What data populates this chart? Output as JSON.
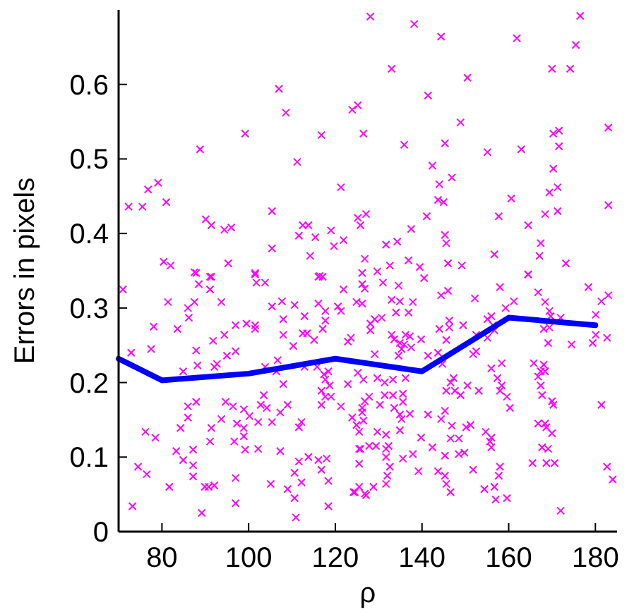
{
  "chart_data": {
    "type": "scatter",
    "xlabel": "ρ",
    "ylabel": "Errors in pixels",
    "xlim": [
      70,
      185
    ],
    "ylim": [
      0,
      0.7
    ],
    "xticks": [
      80,
      100,
      120,
      140,
      160,
      180
    ],
    "yticks": [
      0,
      0.1,
      0.2,
      0.3,
      0.4,
      0.5,
      0.6
    ],
    "series": [
      {
        "color": "#ff00ff",
        "marker": "cross",
        "x": [
          72.3,
          75.5,
          76.8,
          79.1,
          81.0,
          88.8,
          90.1,
          91.4,
          94.4,
          96.0,
          99.2,
          105.4,
          105.4,
          107.0,
          108.6,
          111.2,
          111.6,
          112.5,
          113.8,
          115.4,
          116.8,
          119.0,
          119.7,
          121.3,
          121.9,
          123.9,
          125.2,
          126.5,
          125.2,
          80.4,
          82.0,
          87.5,
          91.4,
          95.3,
          101.5,
          114.2,
          116.1,
          128.1,
          138.2,
          144.4,
          161.9,
          176.5,
          175.5,
          133.0,
          150.5,
          170.0,
          174.2,
          141.4,
          148.9,
          135.9,
          145.3,
          155.1,
          162.9,
          170.3,
          171.6,
          171.6,
          183.0,
          142.4,
          170.3,
          144.0,
          146.9,
          160.6,
          169.4,
          171.3,
          183.0,
          143.7,
          145.0,
          127.1,
          125.8,
          141.1,
          157.7,
          168.4,
          171.3,
          164.5,
          137.5,
          145.3,
          145.6,
          131.7,
          134.3,
          167.4,
          126.8,
          136.9,
          146.0,
          149.2,
          156.7,
          167.1,
          173.2,
          129.7,
          132.6,
          139.5,
          164.5,
          126.2,
          140.5,
          71.0,
          81.4,
          78.1,
          72.9,
          77.5,
          83.6,
          86.0,
          87.5,
          87.9,
          88.5,
          86.2,
          91.1,
          91.1,
          93.7,
          94.4,
          91.8,
          87.9,
          88.2,
          84.9,
          92.1,
          92.7,
          95.0,
          97.0,
          86.0,
          86.0,
          87.9,
          84.3,
          83.3,
          84.9,
          87.2,
          87.2,
          87.2,
          81.7,
          74.5,
          76.5,
          76.2,
          78.5,
          73.2,
          89.2,
          89.9,
          90.8,
          92.1,
          91.1,
          91.4,
          93.7,
          94.7,
          97.0,
          97.0,
          96.4,
          96.7,
          97.3,
          97.0,
          98.9,
          98.9,
          99.2,
          98.9,
          100.2,
          99.5,
          101.5,
          101.5,
          101.8,
          103.8,
          101.5,
          102.2,
          102.2,
          103.5,
          102.8,
          103.8,
          105.4,
          104.2,
          106.4,
          106.7,
          107.7,
          108.0,
          108.0,
          108.0,
          109.0,
          107.3,
          105.4,
          107.3,
          105.1,
          109.0,
          110.6,
          110.9,
          112.2,
          110.6,
          111.6,
          113.8,
          111.6,
          112.2,
          110.3,
          110.6,
          112.9,
          112.5,
          113.5,
          112.9,
          115.8,
          115.1,
          116.1,
          116.4,
          117.1,
          117.7,
          117.7,
          117.1,
          117.4,
          118.4,
          117.7,
          118.7,
          116.8,
          116.8,
          117.7,
          119.0,
          116.1,
          116.8,
          118.0,
          118.4,
          118.4,
          121.3,
          121.9,
          120.6,
          121.3,
          122.9,
          123.6,
          122.9,
          123.9,
          124.9,
          125.8,
          125.5,
          124.2,
          126.8,
          126.2,
          126.2,
          126.8,
          131.0,
          134.6,
          124.9,
          126.2,
          133.0,
          134.9,
          137.9,
          134.0,
          136.9,
          129.1,
          130.7,
          128.1,
          128.1,
          133.0,
          133.6,
          136.2,
          137.2,
          139.8,
          134.9,
          135.3,
          135.9,
          134.6,
          137.5,
          129.1,
          125.2,
          126.5,
          129.7,
          131.4,
          133.3,
          136.2,
          131.4,
          133.3,
          135.6,
          127.8,
          126.8,
          135.6,
          130.3,
          133.6,
          126.2,
          134.9,
          137.2,
          126.5,
          135.3,
          141.4,
          144.4,
          145.3,
          125.5,
          129.7,
          131.7,
          134.9,
          132.3,
          129.4,
          125.5,
          127.8,
          131.7,
          131.7,
          135.6,
          137.9,
          132.6,
          132.0,
          139.8,
          142.4,
          145.3,
          146.6,
          146.9,
          148.5,
          148.5,
          149.8,
          150.2,
          151.2,
          154.7,
          155.7,
          156.0,
          156.0,
          158.0,
          143.7,
          145.3,
          145.6,
          146.6,
          151.8,
          157.7,
          156.7,
          154.4,
          157.0,
          159.6,
          139.2,
          131.7,
          128.8,
          127.1,
          124.5,
          125.5,
          141.4,
          143.7,
          144.7,
          147.3,
          146.6,
          147.6,
          145.6,
          150.5,
          148.9,
          153.1,
          151.8,
          152.5,
          152.5,
          155.1,
          156.7,
          156.4,
          156.0,
          155.1,
          149.5,
          146.3,
          146.3,
          145.6,
          144.0,
          144.4,
          146.0,
          152.2,
          158.0,
          159.3,
          161.2,
          164.5,
          166.8,
          168.4,
          169.4,
          169.7,
          168.1,
          169.4,
          172.0,
          169.1,
          174.5,
          178.4,
          181.4,
          183.0,
          180.1,
          180.1,
          179.4,
          182.7,
          156.0,
          158.4,
          157.4,
          158.4,
          158.0,
          159.6,
          160.3,
          165.8,
          167.4,
          168.1,
          168.4,
          166.8,
          167.4,
          167.7,
          170.0,
          170.3,
          166.8,
          168.4,
          168.7,
          170.0,
          167.7,
          169.1,
          165.5,
          168.7,
          170.6,
          181.4,
          182.7,
          184.0,
          172.0
        ],
        "values": [
          0.436,
          0.436,
          0.459,
          0.468,
          0.442,
          0.513,
          0.419,
          0.411,
          0.405,
          0.408,
          0.534,
          0.43,
          0.38,
          0.594,
          0.562,
          0.496,
          0.397,
          0.411,
          0.411,
          0.395,
          0.532,
          0.404,
          0.383,
          0.462,
          0.391,
          0.566,
          0.572,
          0.534,
          0.421,
          0.362,
          0.357,
          0.348,
          0.342,
          0.36,
          0.347,
          0.37,
          0.342,
          0.691,
          0.681,
          0.664,
          0.662,
          0.692,
          0.653,
          0.621,
          0.609,
          0.621,
          0.621,
          0.585,
          0.549,
          0.519,
          0.521,
          0.509,
          0.513,
          0.534,
          0.538,
          0.517,
          0.542,
          0.491,
          0.487,
          0.466,
          0.475,
          0.447,
          0.455,
          0.462,
          0.438,
          0.445,
          0.442,
          0.426,
          0.411,
          0.423,
          0.423,
          0.426,
          0.43,
          0.411,
          0.406,
          0.398,
          0.387,
          0.385,
          0.389,
          0.387,
          0.366,
          0.364,
          0.36,
          0.357,
          0.372,
          0.37,
          0.36,
          0.349,
          0.357,
          0.355,
          0.345,
          0.347,
          0.34,
          0.325,
          0.308,
          0.275,
          0.24,
          0.245,
          0.272,
          0.3,
          0.308,
          0.347,
          0.332,
          0.287,
          0.342,
          0.325,
          0.308,
          0.264,
          0.256,
          0.243,
          0.223,
          0.215,
          0.221,
          0.225,
          0.236,
          0.242,
          0.168,
          0.153,
          0.174,
          0.139,
          0.108,
          0.096,
          0.11,
          0.089,
          0.074,
          0.06,
          0.087,
          0.077,
          0.134,
          0.126,
          0.034,
          0.025,
          0.06,
          0.06,
          0.062,
          0.121,
          0.139,
          0.151,
          0.174,
          0.072,
          0.038,
          0.168,
          0.121,
          0.145,
          0.277,
          0.164,
          0.139,
          0.11,
          0.128,
          0.155,
          0.279,
          0.277,
          0.272,
          0.334,
          0.334,
          0.345,
          0.147,
          0.111,
          0.183,
          0.17,
          0.221,
          0.302,
          0.166,
          0.215,
          0.23,
          0.309,
          0.285,
          0.264,
          0.198,
          0.17,
          0.16,
          0.147,
          0.108,
          0.064,
          0.057,
          0.045,
          0.019,
          0.066,
          0.079,
          0.094,
          0.1,
          0.14,
          0.147,
          0.249,
          0.304,
          0.289,
          0.266,
          0.266,
          0.221,
          0.221,
          0.257,
          0.306,
          0.343,
          0.342,
          0.296,
          0.283,
          0.272,
          0.211,
          0.215,
          0.204,
          0.196,
          0.189,
          0.17,
          0.181,
          0.181,
          0.096,
          0.083,
          0.098,
          0.068,
          0.034,
          0.168,
          0.325,
          0.302,
          0.296,
          0.255,
          0.26,
          0.198,
          0.153,
          0.143,
          0.111,
          0.06,
          0.053,
          0.051,
          0.166,
          0.332,
          0.326,
          0.334,
          0.33,
          0.308,
          0.306,
          0.311,
          0.309,
          0.308,
          0.294,
          0.294,
          0.285,
          0.287,
          0.279,
          0.27,
          0.264,
          0.258,
          0.264,
          0.262,
          0.258,
          0.253,
          0.245,
          0.251,
          0.236,
          0.247,
          0.238,
          0.213,
          0.204,
          0.206,
          0.2,
          0.204,
          0.206,
          0.183,
          0.183,
          0.185,
          0.181,
          0.175,
          0.174,
          0.17,
          0.166,
          0.16,
          0.157,
          0.158,
          0.149,
          0.151,
          0.157,
          0.151,
          0.162,
          0.134,
          0.134,
          0.13,
          0.136,
          0.115,
          0.115,
          0.111,
          0.115,
          0.111,
          0.1,
          0.098,
          0.104,
          0.087,
          0.075,
          0.126,
          0.113,
          0.102,
          0.125,
          0.142,
          0.125,
          0.104,
          0.106,
          0.14,
          0.143,
          0.134,
          0.121,
          0.113,
          0.126,
          0.087,
          0.081,
          0.075,
          0.064,
          0.053,
          0.083,
          0.075,
          0.06,
          0.057,
          0.043,
          0.045,
          0.081,
          0.064,
          0.06,
          0.049,
          0.053,
          0.091,
          0.236,
          0.24,
          0.225,
          0.206,
          0.2,
          0.189,
          0.189,
          0.196,
          0.183,
          0.189,
          0.238,
          0.242,
          0.264,
          0.26,
          0.27,
          0.277,
          0.289,
          0.285,
          0.277,
          0.283,
          0.274,
          0.257,
          0.272,
          0.317,
          0.323,
          0.313,
          0.328,
          0.3,
          0.309,
          0.345,
          0.321,
          0.308,
          0.296,
          0.289,
          0.272,
          0.274,
          0.287,
          0.253,
          0.251,
          0.328,
          0.309,
          0.317,
          0.291,
          0.264,
          0.253,
          0.26,
          0.219,
          0.226,
          0.206,
          0.196,
          0.189,
          0.181,
          0.166,
          0.226,
          0.215,
          0.224,
          0.215,
          0.208,
          0.196,
          0.183,
          0.175,
          0.17,
          0.145,
          0.145,
          0.14,
          0.132,
          0.113,
          0.111,
          0.092,
          0.092,
          0.092,
          0.17,
          0.087,
          0.07,
          0.028
        ]
      },
      {
        "type": "line",
        "color": "#0000ff",
        "marker": "none",
        "line_style": "solid",
        "x": [
          70,
          80,
          100,
          120,
          140,
          160,
          180
        ],
        "values": [
          0.232,
          0.203,
          0.212,
          0.232,
          0.215,
          0.287,
          0.277
        ]
      }
    ]
  }
}
